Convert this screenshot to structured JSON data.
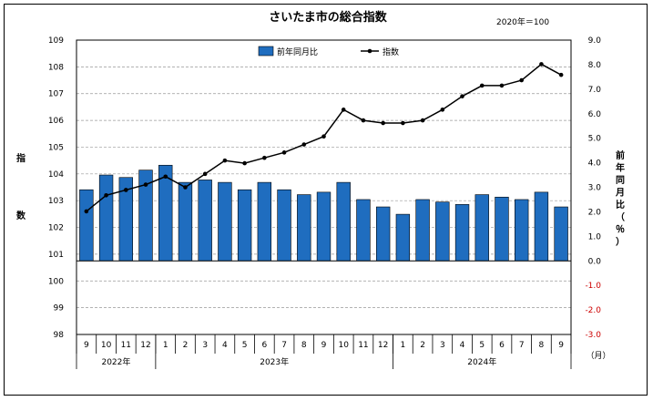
{
  "chart_data": {
    "type": "bar+line",
    "title": "さいたま市の総合指数",
    "base_note": "2020年＝100",
    "ylabel_left": "指数",
    "ylabel_right": "前年同月比（％）",
    "x_unit": "（月）",
    "categories": [
      "9",
      "10",
      "11",
      "12",
      "1",
      "2",
      "3",
      "4",
      "5",
      "6",
      "7",
      "8",
      "9",
      "10",
      "11",
      "12",
      "1",
      "2",
      "3",
      "4",
      "5",
      "6",
      "7",
      "8",
      "9"
    ],
    "year_groups": [
      {
        "label": "2022年",
        "start": 0,
        "count": 4
      },
      {
        "label": "2023年",
        "start": 4,
        "count": 12
      },
      {
        "label": "2024年",
        "start": 16,
        "count": 9
      }
    ],
    "series": [
      {
        "name": "前年同月比",
        "kind": "bar",
        "axis": "right",
        "color": "#1f6dbf",
        "values": [
          2.9,
          3.5,
          3.4,
          3.7,
          3.9,
          3.2,
          3.3,
          3.2,
          2.9,
          3.2,
          2.9,
          2.7,
          2.8,
          3.2,
          2.5,
          2.2,
          1.9,
          2.5,
          2.4,
          2.3,
          2.7,
          2.6,
          2.5,
          2.8,
          2.2
        ]
      },
      {
        "name": "指数",
        "kind": "line",
        "axis": "left",
        "color": "#000000",
        "values": [
          102.6,
          103.2,
          103.4,
          103.6,
          103.9,
          103.5,
          104.0,
          104.5,
          104.4,
          104.6,
          104.8,
          105.1,
          105.4,
          106.4,
          106.0,
          105.9,
          105.9,
          106.0,
          106.4,
          106.9,
          107.3,
          107.3,
          107.5,
          108.1,
          107.7
        ]
      }
    ],
    "ylim_left": [
      98,
      109
    ],
    "yticks_left": [
      "98",
      "99",
      "100",
      "101",
      "102",
      "103",
      "104",
      "105",
      "106",
      "107",
      "108",
      "109"
    ],
    "ylim_right": [
      -3,
      9
    ],
    "yticks_right": [
      "-3.0",
      "-2.0",
      "-1.0",
      "0.0",
      "1.0",
      "2.0",
      "3.0",
      "4.0",
      "5.0",
      "6.0",
      "7.0",
      "8.0",
      "9.0"
    ],
    "legend_position": "top-center",
    "grid": "horizontal dashed"
  }
}
